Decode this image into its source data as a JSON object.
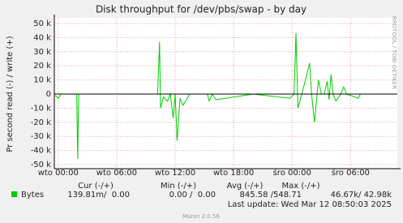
{
  "chart_data": {
    "type": "line",
    "title": "Disk throughput for /dev/pbs/swap - by day",
    "y_label": "Pr second read (-) / write (+)",
    "side_label": "RRDTOOL / TOBI OETIKER",
    "xlim": [
      -0.4,
      34.8
    ],
    "xticks": [
      {
        "value": 0,
        "label": "wto 00:00"
      },
      {
        "value": 6,
        "label": "wto 06:00"
      },
      {
        "value": 12,
        "label": "wto 12:00"
      },
      {
        "value": 18,
        "label": "wto 18:00"
      },
      {
        "value": 24,
        "label": "śro 00:00"
      },
      {
        "value": 30,
        "label": "śro 06:00"
      }
    ],
    "ylim": [
      -50000,
      50000
    ],
    "yticks": [
      {
        "value": -50000,
        "label": "-50 k"
      },
      {
        "value": -40000,
        "label": "-40 k"
      },
      {
        "value": -30000,
        "label": "-30 k"
      },
      {
        "value": -20000,
        "label": "-20 k"
      },
      {
        "value": -10000,
        "label": "-10 k"
      },
      0,
      {
        "value": 10000,
        "label": "10 k"
      },
      {
        "value": 20000,
        "label": "20 k"
      },
      {
        "value": 30000,
        "label": "30 k"
      },
      {
        "value": 40000,
        "label": "40 k"
      },
      {
        "value": 50000,
        "label": "50 k"
      }
    ],
    "grid": true,
    "x": [
      -0.3,
      0,
      0.3,
      1,
      1.9,
      2.0,
      2.1,
      5,
      10.2,
      10.4,
      10.5,
      10.8,
      11.2,
      11.5,
      11.8,
      12.0,
      12.2,
      12.5,
      12.8,
      13.5,
      15.3,
      15.5,
      15.8,
      16.2,
      20,
      23.8,
      24.2,
      24.4,
      24.6,
      25.0,
      25.8,
      26.0,
      26.3,
      26.7,
      27.0,
      27.3,
      27.6,
      27.8,
      28.0,
      28.2,
      28.5,
      29.0,
      29.3,
      29.6,
      30.8,
      31.0,
      34.8
    ],
    "series": [
      {
        "name": "Bytes",
        "color": "#00cc00",
        "values": [
          -1000,
          -3000,
          0,
          0,
          0,
          -46000,
          0,
          0,
          0,
          37000,
          -10000,
          -2000,
          -5000,
          0,
          -17000,
          0,
          -33000,
          -3000,
          -8000,
          0,
          0,
          -5000,
          0,
          -4000,
          0,
          -3000,
          0,
          43000,
          -10000,
          0,
          22000,
          0,
          -20000,
          10000,
          0,
          0,
          9000,
          -4000,
          14000,
          0,
          -5000,
          0,
          5000,
          0,
          -3000,
          0,
          0
        ]
      }
    ],
    "legend_headers": [
      "Cur (-/+)",
      "Min (-/+)",
      "Avg (-/+)",
      "Max (-/+)"
    ],
    "legend_stats": [
      "139.81m/  0.00",
      "0.00 /  0.00",
      "845.58 /548.71",
      "46.67k/ 42.98k"
    ],
    "last_update": "Last update: Wed Mar 12 08:50:03 2025",
    "footer": "Munin 2.0.56"
  }
}
